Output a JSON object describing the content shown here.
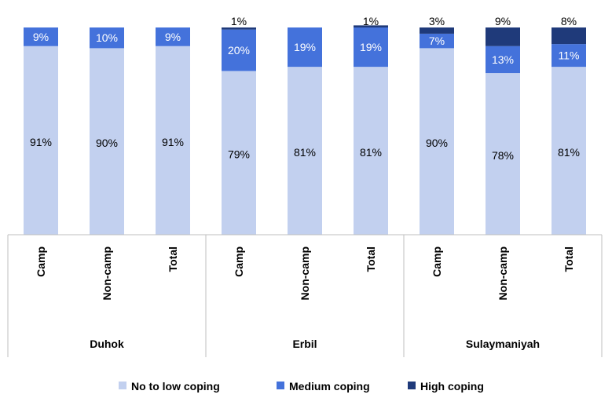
{
  "chart_data": {
    "type": "stacked-bar",
    "groups": [
      {
        "name": "Duhok",
        "categories": [
          "Camp",
          "Non-camp",
          "Total"
        ]
      },
      {
        "name": "Erbil",
        "categories": [
          "Camp",
          "Non-camp",
          "Total"
        ]
      },
      {
        "name": "Sulaymaniyah",
        "categories": [
          "Camp",
          "Non-camp",
          "Total"
        ]
      }
    ],
    "series": [
      {
        "name": "No to low coping",
        "color": "#c2d0ef",
        "values": [
          91,
          90,
          91,
          79,
          81,
          81,
          90,
          78,
          81
        ],
        "labels": [
          "91%",
          "90%",
          "91%",
          "79%",
          "81%",
          "81%",
          "90%",
          "78%",
          "81%"
        ]
      },
      {
        "name": "Medium coping",
        "color": "#4472db",
        "values": [
          9,
          10,
          9,
          20,
          19,
          19,
          7,
          13,
          11
        ],
        "labels": [
          "9%",
          "10%",
          "9%",
          "20%",
          "19%",
          "19%",
          "7%",
          "13%",
          "11%"
        ]
      },
      {
        "name": "High coping",
        "color": "#1f3a7a",
        "values": [
          0,
          0,
          0,
          1,
          0,
          1,
          3,
          9,
          8
        ],
        "labels": [
          "",
          "",
          "",
          "1%",
          "",
          "1%",
          "3%",
          "9%",
          "8%"
        ]
      }
    ],
    "ylim": [
      0,
      100
    ],
    "legend_position": "bottom"
  }
}
